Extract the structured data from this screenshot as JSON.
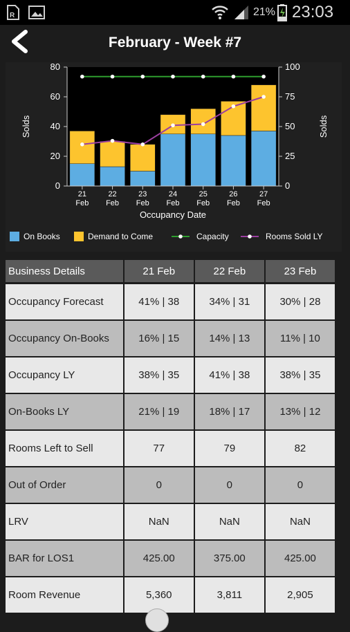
{
  "status": {
    "battery": "21%",
    "time": "23:03"
  },
  "header": {
    "title": "February - Week #7"
  },
  "chart_data": {
    "type": "bar",
    "stacked": true,
    "categories": [
      [
        "21",
        "Feb"
      ],
      [
        "22",
        "Feb"
      ],
      [
        "23",
        "Feb"
      ],
      [
        "24",
        "Feb"
      ],
      [
        "25",
        "Feb"
      ],
      [
        "26",
        "Feb"
      ],
      [
        "27",
        "Feb"
      ]
    ],
    "series": [
      {
        "name": "On Books",
        "type": "bar",
        "color": "#5dade2",
        "values": [
          15,
          13,
          10,
          35,
          35,
          34,
          37
        ]
      },
      {
        "name": "Demand to Come",
        "type": "bar",
        "color": "#fdc42e",
        "values": [
          22,
          17,
          18,
          13,
          17,
          23,
          31
        ]
      },
      {
        "name": "Capacity",
        "type": "line",
        "axis": "right",
        "color": "#2e9e2e",
        "values": [
          92,
          92,
          92,
          92,
          92,
          92,
          92
        ]
      },
      {
        "name": "Rooms Sold LY",
        "type": "line",
        "axis": "right",
        "color": "#9b3fa0",
        "values": [
          35,
          38,
          35,
          51,
          52,
          67,
          75
        ]
      }
    ],
    "xlabel": "Occupancy Date",
    "ylabel_left": "Solds",
    "ylabel_right": "Solds",
    "ylim_left": [
      0,
      80
    ],
    "yticks_left": [
      "0",
      "20",
      "40",
      "60",
      "80"
    ],
    "ylim_right": [
      0,
      100
    ],
    "yticks_right": [
      "0",
      "25",
      "50",
      "75",
      "100"
    ],
    "grid": false,
    "legend_position": "bottom"
  },
  "table": {
    "header_label": "Business Details",
    "columns": [
      "21 Feb",
      "22 Feb",
      "23 Feb"
    ],
    "rows": [
      {
        "label": "Occupancy Forecast",
        "values": [
          "41% | 38",
          "34% | 31",
          "30% | 28"
        ]
      },
      {
        "label": "Occupancy On-Books",
        "values": [
          "16% | 15",
          "14% | 13",
          "11% | 10"
        ]
      },
      {
        "label": "Occupancy LY",
        "values": [
          "38% | 35",
          "41% | 38",
          "38% | 35"
        ]
      },
      {
        "label": "On-Books LY",
        "values": [
          "21% | 19",
          "18% | 17",
          "13% | 12"
        ]
      },
      {
        "label": "Rooms Left to Sell",
        "values": [
          "77",
          "79",
          "82"
        ]
      },
      {
        "label": "Out of Order",
        "values": [
          "0",
          "0",
          "0"
        ]
      },
      {
        "label": "LRV",
        "values": [
          "NaN",
          "NaN",
          "NaN"
        ]
      },
      {
        "label": "BAR for LOS1",
        "values": [
          "425.00",
          "375.00",
          "425.00"
        ]
      },
      {
        "label": "Room Revenue",
        "values": [
          "5,360",
          "3,811",
          "2,905"
        ]
      }
    ]
  }
}
